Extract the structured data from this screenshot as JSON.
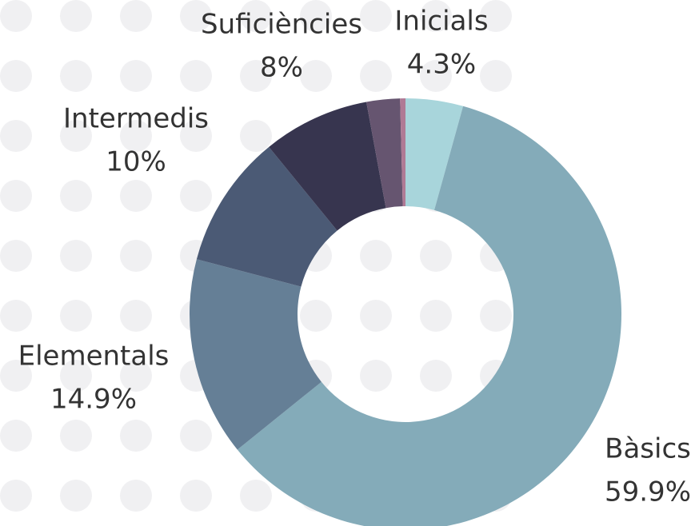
{
  "chart_data": {
    "type": "donut",
    "categories": [
      "Inicials",
      "Bàsics",
      "Elementals",
      "Intermedis",
      "Suficiències",
      null,
      null
    ],
    "values": [
      4.3,
      59.9,
      14.9,
      10,
      8,
      2.5,
      0.4
    ],
    "value_labels": [
      "4.3%",
      "59.9%",
      "14.9%",
      "10%",
      "8%",
      null,
      null
    ],
    "colors": [
      "#a8d5db",
      "#84abb9",
      "#657f96",
      "#4b5a75",
      "#37354f",
      "#665570",
      "#b07a95"
    ]
  }
}
